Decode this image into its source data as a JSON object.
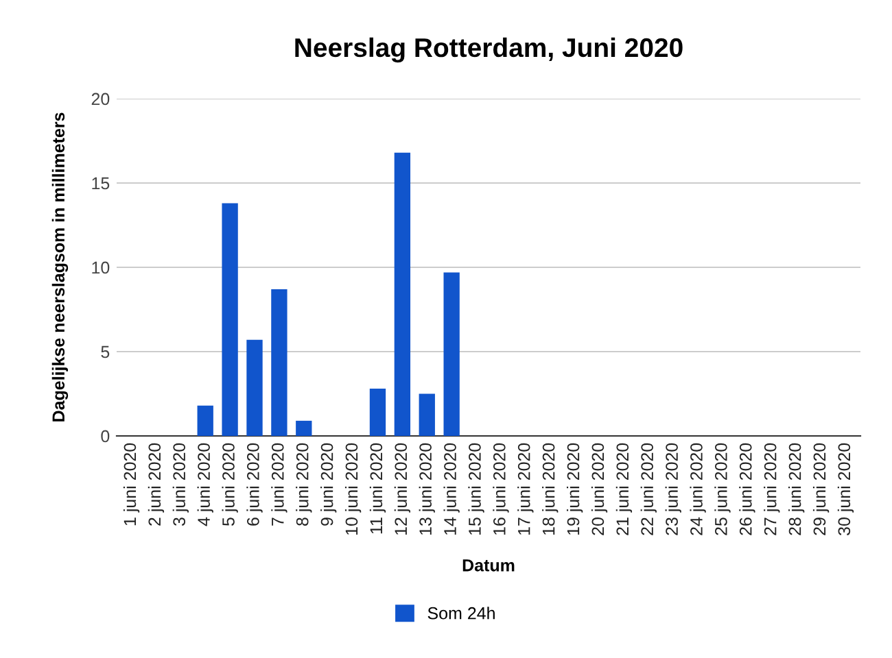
{
  "chart_data": {
    "type": "bar",
    "title": "Neerslag Rotterdam, Juni 2020",
    "xlabel": "Datum",
    "ylabel": "Dagelijkse neerslagsom in millimeters",
    "categories": [
      "1 juni 2020",
      "2 juni 2020",
      "3 juni 2020",
      "4 juni 2020",
      "5 juni 2020",
      "6 juni 2020",
      "7 juni 2020",
      "8 juni 2020",
      "9 juni 2020",
      "10 juni 2020",
      "11 juni 2020",
      "12 juni 2020",
      "13 juni 2020",
      "14 juni 2020",
      "15 juni 2020",
      "16 juni 2020",
      "17 juni 2020",
      "18 juni 2020",
      "19 juni 2020",
      "20 juni 2020",
      "21 juni 2020",
      "22 juni 2020",
      "23 juni 2020",
      "24 juni 2020",
      "25 juni 2020",
      "26 juni 2020",
      "27 juni 2020",
      "28 juni 2020",
      "29 juni 2020",
      "30 juni 2020"
    ],
    "series": [
      {
        "name": "Som 24h",
        "color": "#1155cc",
        "values": [
          0,
          0,
          0,
          1.8,
          13.8,
          5.7,
          8.7,
          0.9,
          0,
          0,
          2.8,
          16.8,
          2.5,
          9.7,
          0,
          0,
          0,
          0,
          0,
          0,
          0,
          0,
          0,
          0,
          0,
          0,
          0,
          0,
          0,
          0
        ]
      }
    ],
    "ylim": [
      0,
      20
    ],
    "yticks": [
      0,
      5,
      10,
      15,
      20
    ],
    "grid": "y",
    "legend": "bottom"
  }
}
